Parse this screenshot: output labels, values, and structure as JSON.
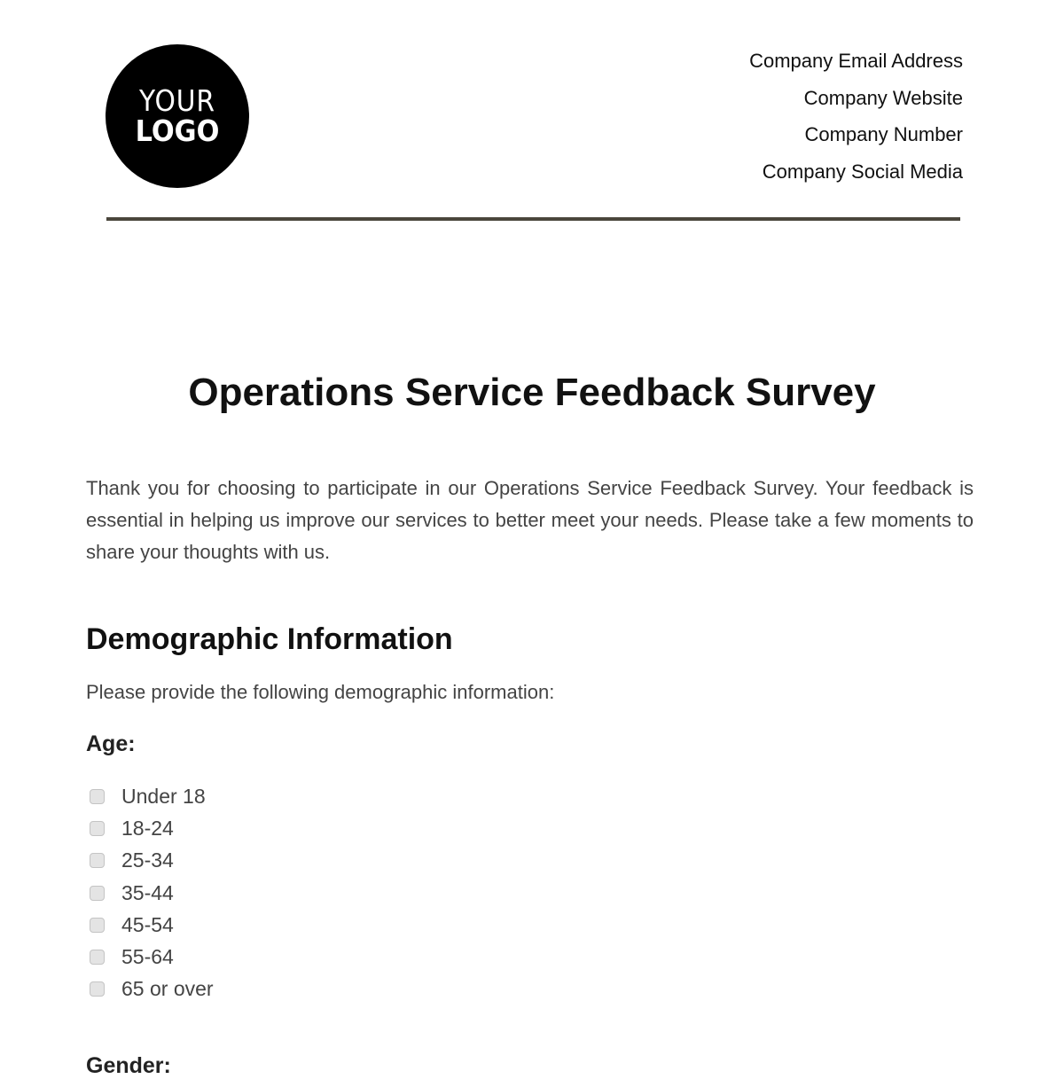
{
  "logo": {
    "line1": "YOUR",
    "line2": "LOGO"
  },
  "contact": [
    "Company Email Address",
    "Company Website",
    "Company Number",
    "Company Social Media"
  ],
  "title": "Operations Service Feedback Survey",
  "intro": "Thank you for choosing to participate in our Operations Service Feedback Survey. Your feedback is essential in helping us improve our services to better meet your needs. Please take a few moments to share your thoughts with us.",
  "section": {
    "heading": "Demographic Information",
    "subtext": "Please provide the following demographic information:",
    "age": {
      "label": "Age:",
      "options": [
        "Under 18",
        "18-24",
        "25-34",
        "35-44",
        "45-54",
        "55-64",
        "65 or over"
      ]
    },
    "gender": {
      "label": "Gender:"
    }
  }
}
